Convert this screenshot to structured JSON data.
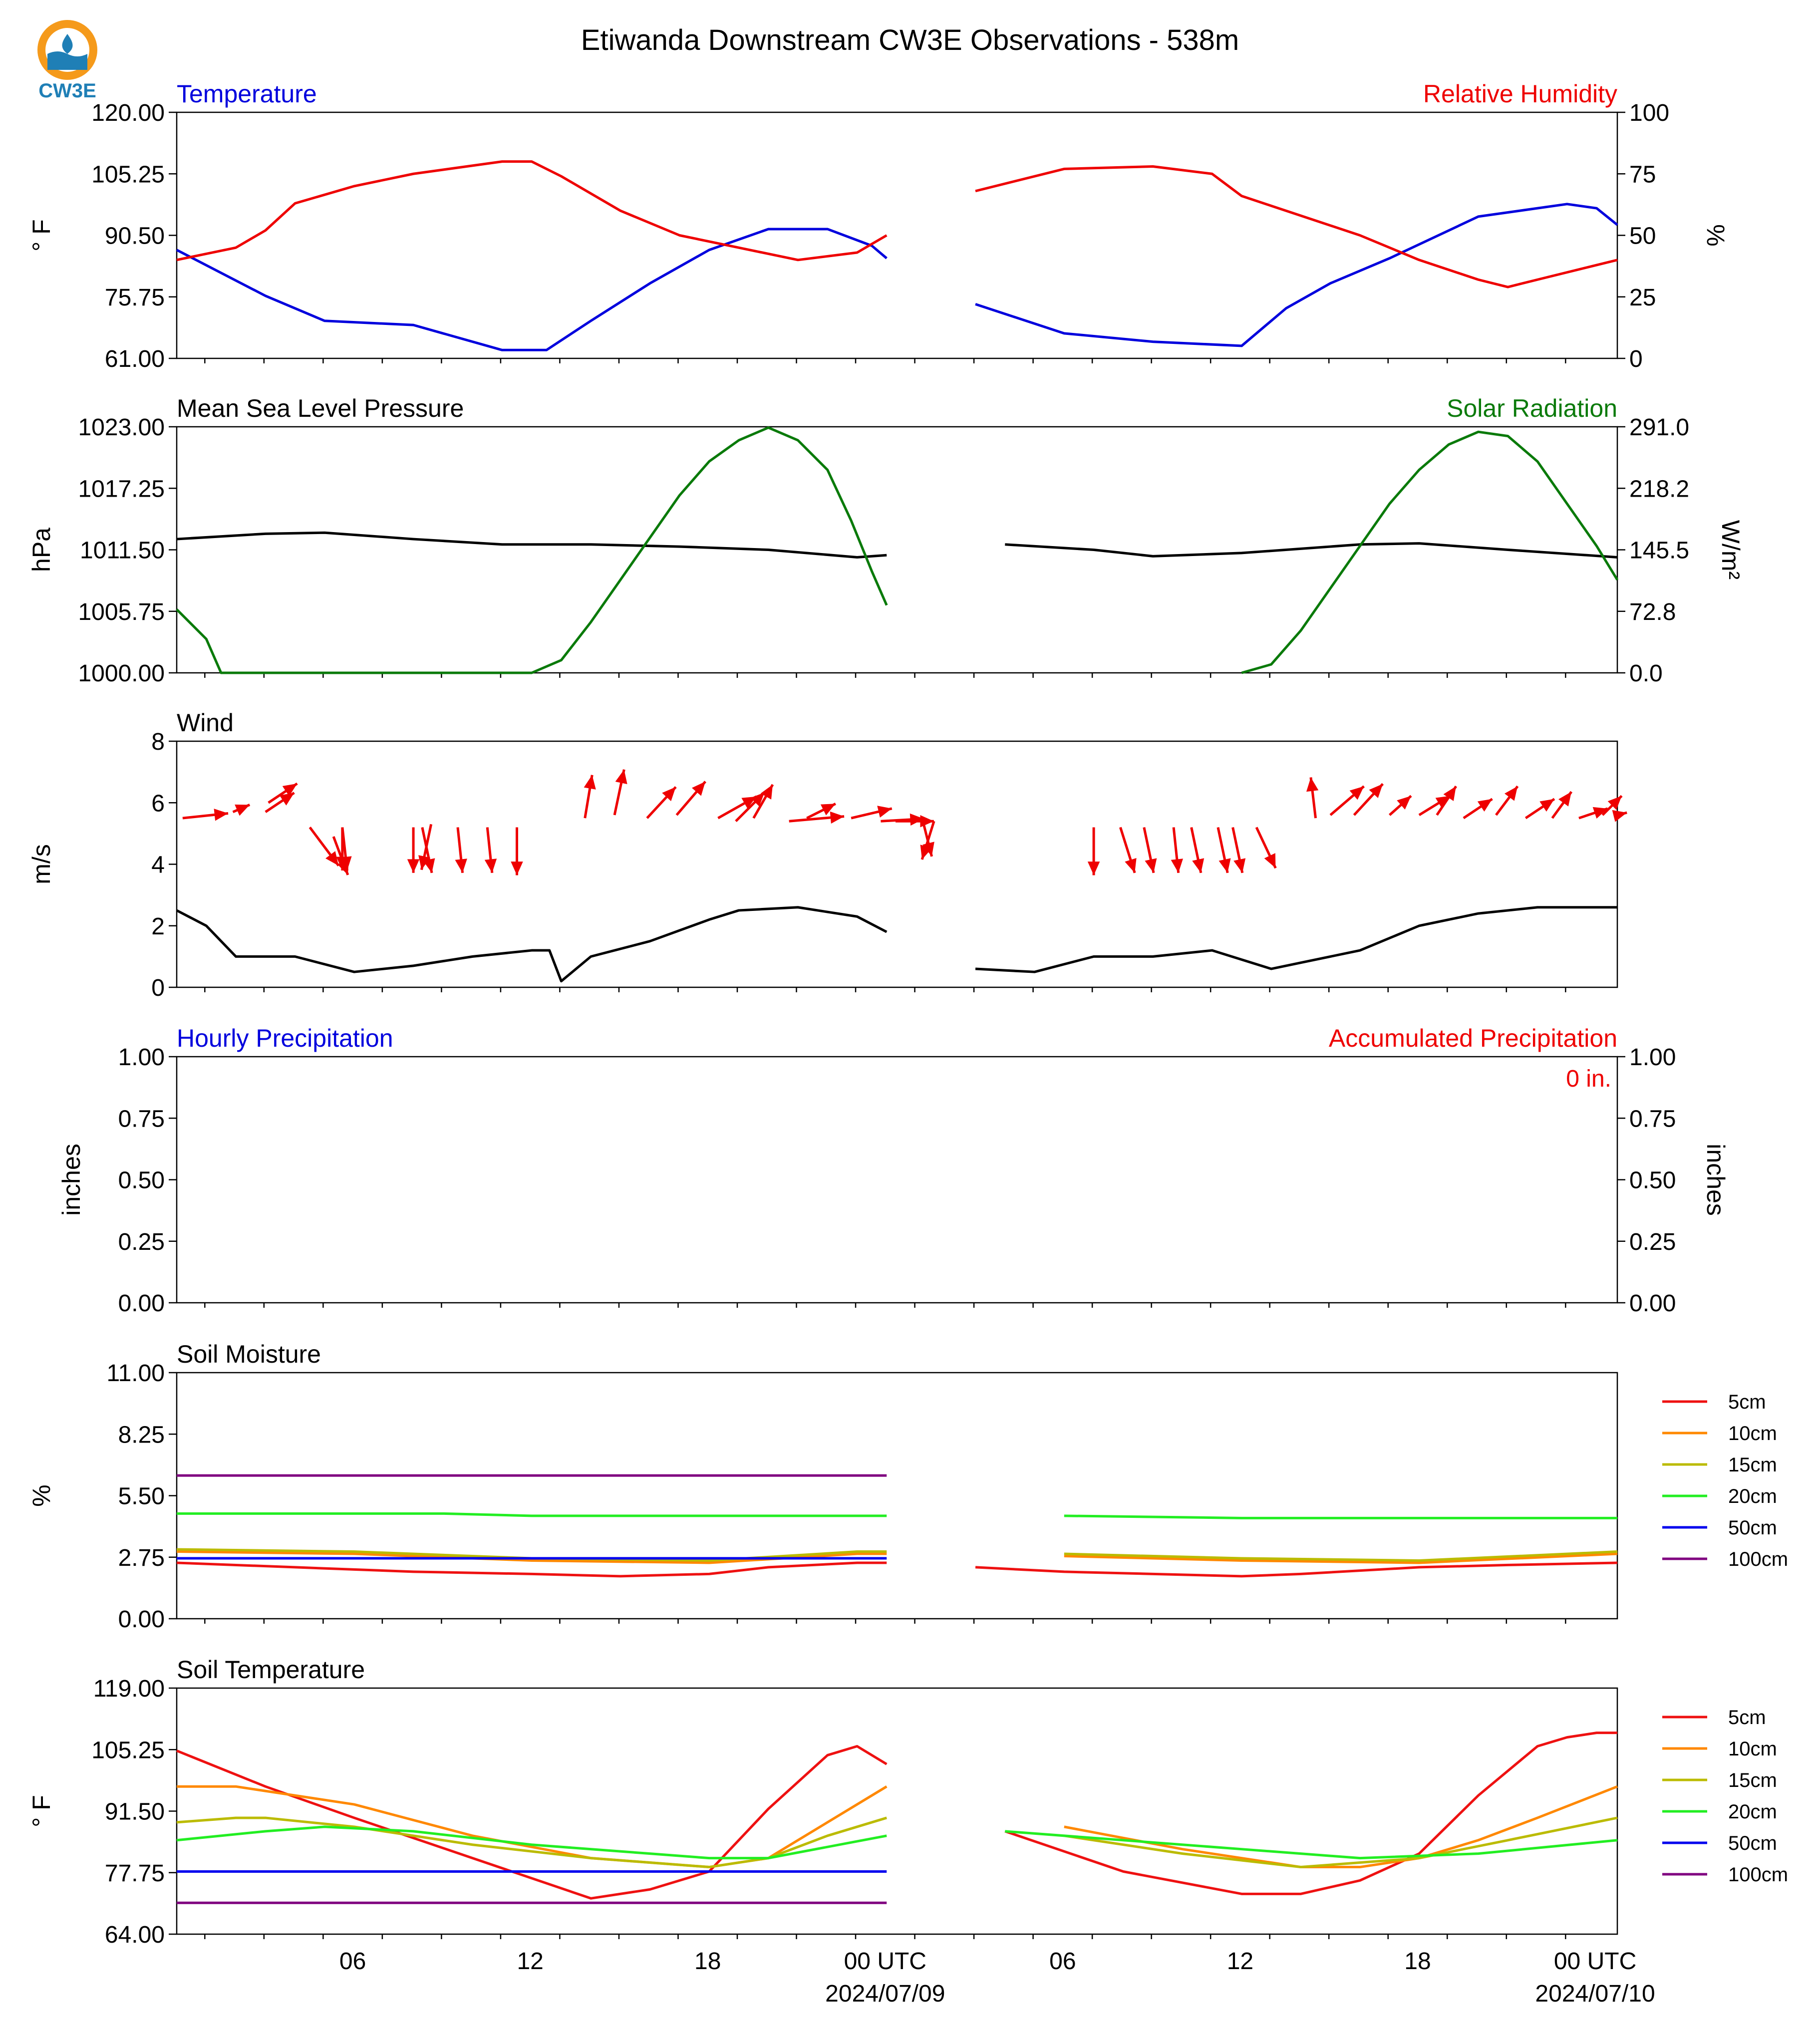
{
  "title": "Etiwanda Downstream CW3E Observations - 538m",
  "logo_text": "CW3E",
  "colors": {
    "blue": "#0000dd",
    "red": "#ee0000",
    "green": "#0a7a0a",
    "black": "#000000"
  },
  "x_axis": {
    "tick_labels": [
      "06",
      "12",
      "18",
      "00 UTC",
      "06",
      "12",
      "18",
      "00 UTC"
    ],
    "date_labels": [
      "2024/07/09",
      "2024/07/10"
    ]
  },
  "chart_data": [
    {
      "type": "line",
      "left_title": "Temperature",
      "right_title": "Relative Humidity",
      "left_ylabel": "° F",
      "right_ylabel": "%",
      "left_ticks": [
        "120.00",
        "105.25",
        "90.50",
        "75.75",
        "61.00"
      ],
      "right_ticks": [
        "100",
        "75",
        "50",
        "25",
        "0"
      ],
      "ylim_left": [
        61,
        120
      ],
      "ylim_right": [
        0,
        100
      ],
      "series": [
        {
          "key": "temperature",
          "axis": "left",
          "color": "#0000dd",
          "x": [
            0,
            3,
            5,
            8,
            11,
            12.5,
            14,
            16,
            18,
            20,
            22,
            23.5,
            24,
            25.5,
            27,
            30,
            33,
            36,
            37.5,
            39,
            41,
            44,
            47,
            48,
            48.7
          ],
          "y": [
            87,
            76,
            70,
            69,
            63,
            63,
            70,
            79,
            87,
            92,
            92,
            88,
            85,
            75,
            74,
            67,
            65,
            64,
            73,
            79,
            85,
            95,
            98,
            97,
            93
          ]
        },
        {
          "key": "humidity",
          "axis": "right",
          "color": "#ee0000",
          "x": [
            0,
            2,
            3,
            4,
            6,
            8,
            11,
            12,
            13,
            15,
            17,
            19,
            21,
            23,
            24,
            25.5,
            27,
            30,
            33,
            35,
            36,
            37,
            40,
            42,
            44,
            45,
            46,
            48.7
          ],
          "y": [
            40,
            45,
            52,
            63,
            70,
            75,
            80,
            80,
            74,
            60,
            50,
            45,
            40,
            43,
            50,
            70,
            68,
            77,
            78,
            75,
            66,
            62,
            50,
            40,
            32,
            29,
            32,
            40
          ]
        }
      ]
    },
    {
      "type": "line",
      "left_title": "Mean Sea Level Pressure",
      "right_title": "Solar Radiation",
      "left_ylabel": "hPa",
      "right_ylabel": "W/m²",
      "left_ticks": [
        "1023.00",
        "1017.25",
        "1011.50",
        "1005.75",
        "1000.00"
      ],
      "right_ticks": [
        "291.0",
        "218.2",
        "145.5",
        "72.8",
        "0.0"
      ],
      "ylim_left": [
        1000,
        1023
      ],
      "ylim_right": [
        0,
        291
      ],
      "series": [
        {
          "key": "pressure",
          "axis": "left",
          "color": "#000000",
          "x": [
            0,
            3,
            5,
            8,
            11,
            14,
            17,
            20,
            23,
            24,
            25.5,
            28,
            31,
            33,
            36,
            40,
            42,
            45,
            48.7
          ],
          "y": [
            1012.5,
            1013,
            1013.1,
            1012.5,
            1012.0,
            1012.0,
            1011.8,
            1011.5,
            1010.8,
            1011.0,
            1011.9,
            1012.0,
            1011.5,
            1010.9,
            1011.2,
            1012.0,
            1012.1,
            1011.5,
            1010.8
          ]
        },
        {
          "key": "solar",
          "axis": "right",
          "color": "#0a7a0a",
          "x": [
            0,
            1,
            1.5,
            12,
            13,
            14,
            15,
            16,
            17,
            18,
            19,
            20,
            21,
            22,
            22.8,
            23.5,
            24,
            25.5,
            36,
            37,
            38,
            39,
            40,
            41,
            42,
            43,
            44,
            45,
            46,
            47,
            48,
            48.7
          ],
          "y": [
            75,
            40,
            0,
            0,
            15,
            60,
            110,
            160,
            210,
            250,
            275,
            290,
            275,
            240,
            180,
            120,
            80,
            0,
            0,
            10,
            50,
            100,
            150,
            200,
            240,
            270,
            285,
            280,
            250,
            200,
            150,
            110
          ]
        }
      ]
    },
    {
      "type": "line",
      "left_title": "Wind",
      "left_ylabel": "m/s",
      "left_ticks": [
        "8",
        "6",
        "4",
        "2",
        "0"
      ],
      "ylim_left": [
        0,
        8
      ],
      "series": [
        {
          "key": "wind_speed",
          "axis": "left",
          "color": "#000000",
          "x": [
            0,
            1,
            2,
            4,
            6,
            8,
            10,
            12,
            12.6,
            13,
            14,
            16,
            18,
            19,
            21,
            23,
            24,
            25.5,
            27,
            29,
            31,
            33,
            35,
            37,
            38,
            40,
            42,
            44,
            46,
            48.7
          ],
          "y": [
            2.5,
            2.0,
            1.0,
            1.0,
            0.5,
            0.7,
            1.0,
            1.2,
            1.2,
            0.2,
            1.0,
            1.5,
            2.2,
            2.5,
            2.6,
            2.3,
            1.8,
            0.8,
            0.6,
            0.5,
            1.0,
            1.0,
            1.2,
            0.6,
            0.8,
            1.2,
            2.0,
            2.4,
            2.6,
            2.6
          ]
        },
        {
          "key": "wind_arrows",
          "color": "#ee0000",
          "x": [
            0.2,
            1.9,
            3.0,
            3.1,
            4.5,
            5.3,
            5.6,
            5.6,
            8.0,
            8.3,
            8.6,
            9.5,
            10.5,
            11.5,
            13.8,
            14.8,
            15.9,
            16.9,
            18.3,
            18.9,
            19.5,
            20.7,
            21.3,
            22.8,
            23.8,
            24.3,
            25.2,
            25.6,
            31.0,
            31.9,
            32.7,
            33.7,
            34.3,
            35.2,
            35.7,
            36.5,
            38.5,
            39.0,
            39.8,
            41.0,
            42.0,
            42.6,
            43.5,
            44.6,
            45.6,
            46.5,
            47.4,
            48.2,
            48.7
          ],
          "y": [
            5.5,
            5.7,
            5.7,
            6.0,
            5.2,
            4.9,
            5.2,
            5.2,
            5.2,
            5.2,
            5.3,
            5.2,
            5.2,
            5.2,
            5.5,
            5.6,
            5.5,
            5.6,
            5.5,
            5.4,
            5.5,
            5.4,
            5.5,
            5.5,
            5.4,
            5.4,
            5.5,
            5.4,
            5.2,
            5.2,
            5.2,
            5.2,
            5.2,
            5.2,
            5.2,
            5.2,
            5.5,
            5.6,
            5.6,
            5.6,
            5.6,
            5.6,
            5.5,
            5.6,
            5.5,
            5.5,
            5.5,
            5.6,
            5.6
          ],
          "u": [
            1.9,
            0.7,
            1.2,
            1.2,
            1.2,
            0.6,
            0,
            0.2,
            0,
            0.4,
            -0.4,
            0.2,
            0.2,
            0,
            0.3,
            0.4,
            1.2,
            1.2,
            1.6,
            1.2,
            0.8,
            2.3,
            1.2,
            1.7,
            1.8,
            1.6,
            0.4,
            -0.5,
            0,
            0.6,
            0.4,
            0.2,
            0.4,
            0.4,
            0.4,
            0.8,
            -0.2,
            1.4,
            1.2,
            0.9,
            1.3,
            0.8,
            1.2,
            0.9,
            1.2,
            0.8,
            1.2,
            0.8,
            0.4
          ],
          "v": [
            0.2,
            0.3,
            0.8,
            0.8,
            -1.6,
            -1.6,
            -1.8,
            -1.8,
            -1.9,
            -1.9,
            -1.9,
            -1.9,
            -1.9,
            -2.0,
            1.8,
            1.9,
            1.3,
            1.4,
            0.9,
            1.2,
            1.4,
            0.2,
            0.6,
            0.4,
            0.1,
            0,
            -1.6,
            -1.6,
            -2.0,
            -1.9,
            -1.9,
            -1.9,
            -1.9,
            -1.9,
            -1.9,
            -1.7,
            1.7,
            1.2,
            1.3,
            0.8,
            0.8,
            1.2,
            0.8,
            1.2,
            0.8,
            1.1,
            0.4,
            0.8,
            0.1
          ]
        }
      ]
    },
    {
      "type": "line",
      "left_title": "Hourly Precipitation",
      "right_title": "Accumulated Precipitation",
      "annotation": "0 in.",
      "left_ylabel": "inches",
      "right_ylabel": "inches",
      "left_ticks": [
        "1.00",
        "0.75",
        "0.50",
        "0.25",
        "0.00"
      ],
      "right_ticks": [
        "1.00",
        "0.75",
        "0.50",
        "0.25",
        "0.00"
      ],
      "ylim_left": [
        0,
        1
      ],
      "ylim_right": [
        0,
        1
      ],
      "series": [
        {
          "key": "precip",
          "axis": "left",
          "color": "#ee0000",
          "x": [
            0,
            48.7
          ],
          "y": [
            0,
            0
          ]
        }
      ]
    },
    {
      "type": "line",
      "left_title": "Soil Moisture",
      "left_ylabel": "%",
      "left_ticks": [
        "11.00",
        "8.25",
        "5.50",
        "2.75",
        "0.00"
      ],
      "ylim_left": [
        0,
        11
      ],
      "legend": [
        "5cm",
        "10cm",
        "15cm",
        "20cm",
        "50cm",
        "100cm"
      ],
      "series": [
        {
          "key": "sm5",
          "name": "5cm",
          "color": "#ee1111",
          "x": [
            0,
            4,
            8,
            12,
            15,
            18,
            20,
            23,
            24,
            25.5,
            27,
            30,
            33,
            36,
            38,
            42,
            45,
            48.7
          ],
          "y": [
            2.5,
            2.3,
            2.1,
            2.0,
            1.9,
            2.0,
            2.3,
            2.5,
            2.5,
            2.4,
            2.3,
            2.1,
            2.0,
            1.9,
            2.0,
            2.3,
            2.4,
            2.5
          ]
        },
        {
          "key": "sm10",
          "name": "10cm",
          "color": "#ff8800",
          "x": [
            0,
            6,
            12,
            18,
            23,
            24,
            25.5,
            30,
            36,
            42,
            48.7
          ],
          "y": [
            3.0,
            2.9,
            2.6,
            2.5,
            2.9,
            2.9,
            2.9,
            2.8,
            2.6,
            2.5,
            2.9
          ]
        },
        {
          "key": "sm15",
          "name": "15cm",
          "color": "#bbbb00",
          "x": [
            0,
            6,
            12,
            18,
            23,
            24,
            25.5,
            30,
            36,
            42,
            48.7
          ],
          "y": [
            3.1,
            3.0,
            2.7,
            2.6,
            3.0,
            3.0,
            3.1,
            2.9,
            2.7,
            2.6,
            3.0
          ]
        },
        {
          "key": "sm20",
          "name": "20cm",
          "color": "#22ee22",
          "x": [
            0,
            9,
            12,
            18,
            23,
            24,
            25.5,
            30,
            36,
            42,
            48.7
          ],
          "y": [
            4.7,
            4.7,
            4.6,
            4.6,
            4.6,
            4.6,
            4.7,
            4.6,
            4.5,
            4.5,
            4.5
          ]
        },
        {
          "key": "sm50",
          "name": "50cm",
          "color": "#0000ee",
          "x": [
            0,
            24,
            25.5,
            48.7
          ],
          "y": [
            2.7,
            2.7,
            2.7,
            2.7
          ]
        },
        {
          "key": "sm100",
          "name": "100cm",
          "color": "#800080",
          "x": [
            0,
            24,
            25.5,
            48.7
          ],
          "y": [
            6.4,
            6.4,
            6.4,
            6.4
          ]
        }
      ]
    },
    {
      "type": "line",
      "left_title": "Soil Temperature",
      "left_ylabel": "° F",
      "left_ticks": [
        "119.00",
        "105.25",
        "91.50",
        "77.75",
        "64.00"
      ],
      "ylim_left": [
        64,
        119
      ],
      "legend": [
        "5cm",
        "10cm",
        "15cm",
        "20cm",
        "50cm",
        "100cm"
      ],
      "series": [
        {
          "key": "st5",
          "name": "5cm",
          "color": "#ee1111",
          "x": [
            0,
            3,
            6,
            10,
            14,
            16,
            18,
            20,
            22,
            23,
            24,
            25.5,
            28,
            32,
            36,
            38,
            40,
            42,
            44,
            46,
            47,
            48,
            48.7
          ],
          "y": [
            105,
            97,
            90,
            81,
            72,
            74,
            78,
            92,
            104,
            106,
            102,
            96,
            87,
            78,
            73,
            73,
            76,
            82,
            95,
            106,
            108,
            109,
            109
          ]
        },
        {
          "key": "st10",
          "name": "10cm",
          "color": "#ff8800",
          "x": [
            0,
            2,
            6,
            10,
            14,
            18,
            20,
            22,
            24,
            25.5,
            30,
            34,
            38,
            40,
            42,
            44,
            46,
            48.7
          ],
          "y": [
            97,
            97,
            93,
            86,
            81,
            79,
            81,
            89,
            97,
            96,
            88,
            83,
            79,
            79,
            81,
            85,
            90,
            97
          ]
        },
        {
          "key": "st15",
          "name": "15cm",
          "color": "#bbbb00",
          "x": [
            0,
            2,
            3,
            6,
            10,
            14,
            18,
            20,
            22,
            24,
            25.5,
            30,
            34,
            38,
            42,
            45,
            48.7
          ],
          "y": [
            89,
            90,
            90,
            88,
            84,
            81,
            79,
            81,
            86,
            90,
            90,
            86,
            82,
            79,
            81,
            85,
            90
          ]
        },
        {
          "key": "st20",
          "name": "20cm",
          "color": "#22ee22",
          "x": [
            0,
            3,
            5,
            8,
            12,
            16,
            18,
            20,
            24,
            25.5,
            28,
            32,
            36,
            40,
            44,
            48.7
          ],
          "y": [
            85,
            87,
            88,
            87,
            84,
            82,
            81,
            81,
            86,
            86,
            87,
            85,
            83,
            81,
            82,
            85
          ]
        },
        {
          "key": "st50",
          "name": "50cm",
          "color": "#0000ee",
          "x": [
            0,
            24,
            25.5,
            48.7
          ],
          "y": [
            78,
            78,
            78,
            78
          ]
        },
        {
          "key": "st100",
          "name": "100cm",
          "color": "#800080",
          "x": [
            0,
            24,
            25.5,
            48.7
          ],
          "y": [
            71,
            71,
            71,
            71
          ]
        }
      ]
    }
  ]
}
